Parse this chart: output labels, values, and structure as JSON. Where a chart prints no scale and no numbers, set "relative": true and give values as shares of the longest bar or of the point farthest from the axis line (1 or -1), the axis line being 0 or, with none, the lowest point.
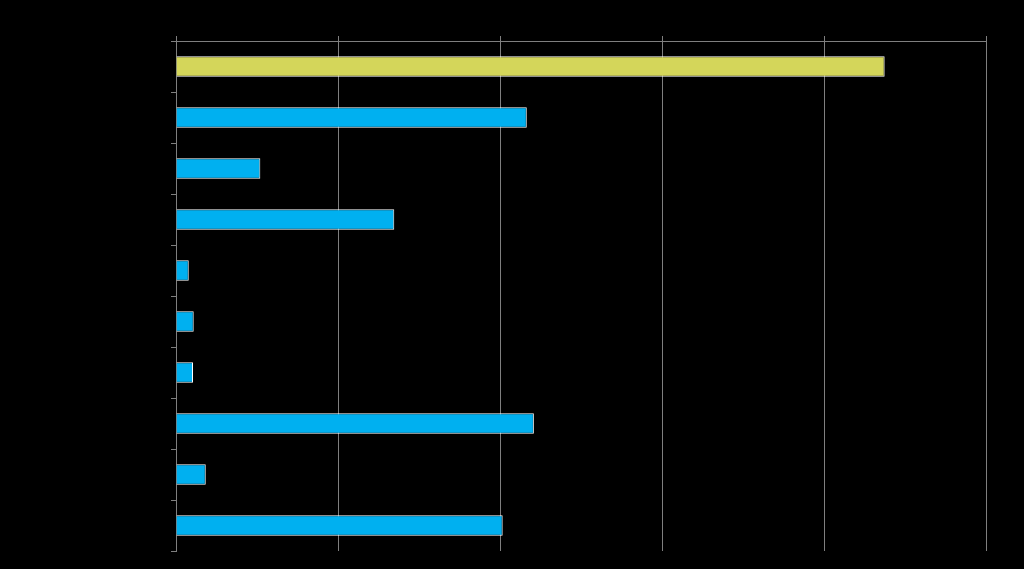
{
  "chart_data": {
    "type": "bar",
    "orientation": "horizontal",
    "relative": true,
    "grid": "x",
    "legend": false,
    "categories": [
      null,
      null,
      null,
      null,
      null,
      null,
      null,
      null,
      null,
      null
    ],
    "values": [
      1,
      0.495,
      0.119,
      0.308,
      0.018,
      0.025,
      0.024,
      0.505,
      0.042,
      0.461
    ],
    "colors": [
      "#d4d65a",
      "#00b0f0",
      "#00b0f0",
      "#00b0f0",
      "#00b0f0",
      "#00b0f0",
      "#00b0f0",
      "#00b0f0",
      "#00b0f0",
      "#00b0f0"
    ]
  }
}
